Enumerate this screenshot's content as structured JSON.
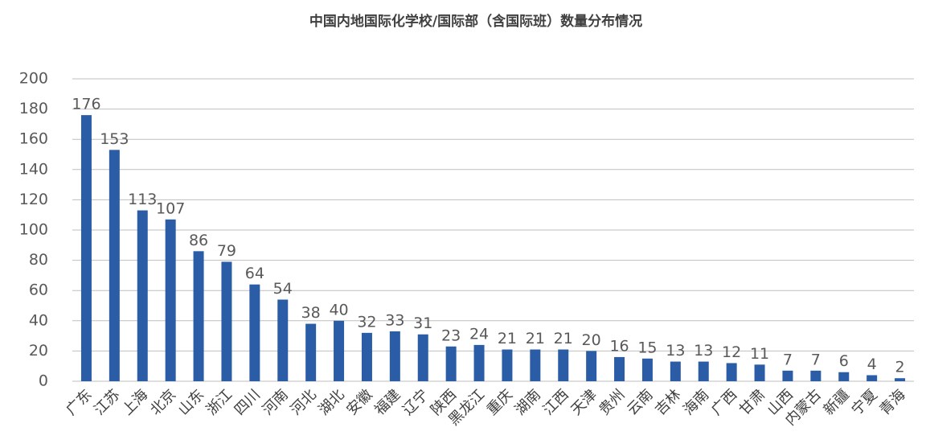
{
  "chart_data": {
    "type": "bar",
    "title": "中国内地国际化学校/国际部（含国际班）数量分布情况",
    "categories": [
      "广东",
      "江苏",
      "上海",
      "北京",
      "山东",
      "浙江",
      "四川",
      "河南",
      "河北",
      "湖北",
      "安徽",
      "福建",
      "辽宁",
      "陕西",
      "黑龙江",
      "重庆",
      "湖南",
      "江西",
      "天津",
      "贵州",
      "云南",
      "吉林",
      "海南",
      "广西",
      "甘肃",
      "山西",
      "内蒙古",
      "新疆",
      "宁夏",
      "青海"
    ],
    "values": [
      176,
      153,
      113,
      107,
      86,
      79,
      64,
      54,
      38,
      40,
      32,
      33,
      31,
      23,
      24,
      21,
      21,
      21,
      20,
      16,
      15,
      13,
      13,
      12,
      11,
      7,
      7,
      6,
      4,
      2
    ],
    "color": "#2b5ca6",
    "ylim": [
      0,
      200
    ],
    "yticks": [
      0,
      20,
      40,
      60,
      80,
      100,
      120,
      140,
      160,
      180,
      200
    ],
    "grid": true
  }
}
